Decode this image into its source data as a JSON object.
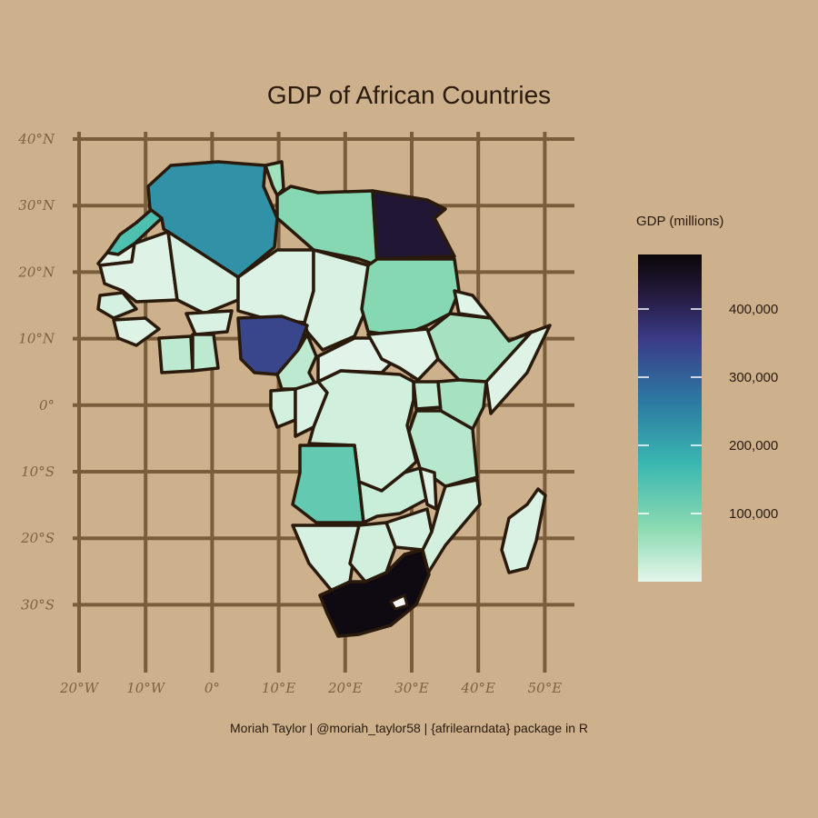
{
  "title": "GDP of African Countries",
  "caption": "Moriah Taylor | @moriah_taylor58 | {afrilearndata} package in R",
  "colors": {
    "background": "#cdb08c",
    "grid": "#7a5e3c",
    "border": "#2a1a0c",
    "scale_low": "#dff3e8",
    "scale_high": "#0b0608"
  },
  "axes": {
    "x_labels": [
      "20°W",
      "10°W",
      "0°",
      "10°E",
      "20°E",
      "30°E",
      "40°E",
      "50°E"
    ],
    "y_labels": [
      "40°N",
      "30°N",
      "20°N",
      "10°N",
      "0°",
      "10°S",
      "20°S",
      "30°S"
    ]
  },
  "legend": {
    "title": "GDP (millions)",
    "ticks": [
      {
        "value": 400000,
        "label": "400,000"
      },
      {
        "value": 300000,
        "label": "300,000"
      },
      {
        "value": 200000,
        "label": "200,000"
      },
      {
        "value": 100000,
        "label": "100,000"
      }
    ],
    "min": 0,
    "max": 480000
  },
  "chart_data": {
    "type": "choropleth",
    "title": "GDP of African Countries",
    "value_label": "GDP (millions)",
    "lon_range": [
      -20,
      50
    ],
    "lat_range": [
      -40,
      40
    ],
    "regions": [
      {
        "id": "south-africa",
        "value": 470000
      },
      {
        "id": "egypt",
        "value": 430000
      },
      {
        "id": "nigeria",
        "value": 340000
      },
      {
        "id": "algeria",
        "value": 230000
      },
      {
        "id": "morocco",
        "value": 150000
      },
      {
        "id": "angola",
        "value": 125000
      },
      {
        "id": "libya",
        "value": 85000
      },
      {
        "id": "sudan",
        "value": 85000
      },
      {
        "id": "tunisia",
        "value": 60000
      },
      {
        "id": "ethiopia",
        "value": 55000
      },
      {
        "id": "kenya",
        "value": 55000
      },
      {
        "id": "tanzania",
        "value": 40000
      },
      {
        "id": "cameroon",
        "value": 35000
      },
      {
        "id": "ivory-coast",
        "value": 35000
      },
      {
        "id": "ghana",
        "value": 35000
      },
      {
        "id": "uganda",
        "value": 30000
      },
      {
        "id": "zambia",
        "value": 25000
      },
      {
        "id": "botswana",
        "value": 18000
      },
      {
        "id": "mozambique",
        "value": 15000
      },
      {
        "id": "drc",
        "value": 18000
      },
      {
        "id": "zimbabwe",
        "value": 14000
      },
      {
        "id": "namibia",
        "value": 12000
      },
      {
        "id": "mali",
        "value": 12000
      },
      {
        "id": "madagascar",
        "value": 10000
      },
      {
        "id": "senegal",
        "value": 14000
      },
      {
        "id": "chad",
        "value": 11000
      },
      {
        "id": "niger",
        "value": 8000
      },
      {
        "id": "burkina-faso",
        "value": 11000
      },
      {
        "id": "mauritania",
        "value": 5000
      },
      {
        "id": "car",
        "value": 2000
      },
      {
        "id": "south-sudan",
        "value": 4000
      },
      {
        "id": "somalia",
        "value": 5000
      },
      {
        "id": "gabon",
        "value": 15000
      },
      {
        "id": "congo",
        "value": 10000
      },
      {
        "id": "guinea",
        "value": 6000
      },
      {
        "id": "western-sahara",
        "value": 900
      },
      {
        "id": "malawi",
        "value": 5000
      },
      {
        "id": "eritrea",
        "value": 3000
      }
    ]
  }
}
